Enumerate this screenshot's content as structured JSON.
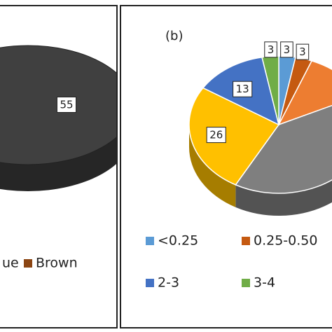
{
  "chart_data": [
    {
      "type": "pie",
      "categories": [
        "ue",
        "Brown",
        null
      ],
      "values": [
        null,
        null,
        55
      ],
      "colors": [
        "#4472c4",
        "#8b4513",
        "#404040"
      ]
    },
    {
      "type": "pie",
      "title": "(b)",
      "categories": [
        "<0.25",
        "0.25-0.50",
        null,
        null,
        null,
        "2-3",
        "3-4"
      ],
      "values": [
        3,
        3,
        12,
        40,
        26,
        13,
        3
      ],
      "labeled": [
        true,
        true,
        false,
        false,
        true,
        true,
        true
      ],
      "colors": [
        "#5b9bd5",
        "#c55a11",
        "#ed7d31",
        "#7f7f7f",
        "#ffc000",
        "#4472c4",
        "#70ad47"
      ]
    }
  ]
}
